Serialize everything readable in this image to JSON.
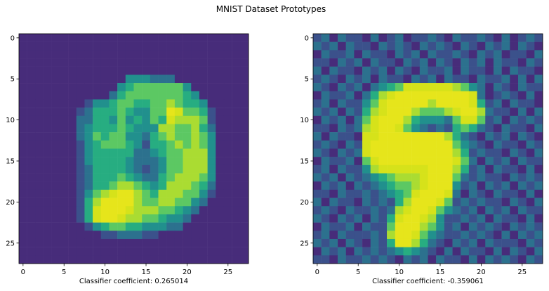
{
  "figure": {
    "suptitle": "MNIST Dataset Prototypes"
  },
  "chart_data": [
    {
      "type": "heatmap",
      "title": "",
      "xlabel": "Classifier coefficient: 0.265014",
      "ylabel": "",
      "colormap": "viridis",
      "grid_size": [
        28,
        28
      ],
      "xlim": [
        -0.5,
        27.5
      ],
      "ylim": [
        27.5,
        -0.5
      ],
      "xticks": [
        0,
        5,
        10,
        15,
        20,
        25
      ],
      "yticks": [
        0,
        5,
        10,
        15,
        20,
        25
      ],
      "xtick_labels": [
        "0",
        "5",
        "10",
        "15",
        "20",
        "25"
      ],
      "ytick_labels": [
        "0",
        "5",
        "10",
        "15",
        "20",
        "25"
      ],
      "grid": false,
      "legend": "none",
      "values": [
        "1111111111111111111111111111",
        "1111111111111111111111111111",
        "1111111111111111111111111111",
        "1111111111111111111111111111",
        "1111111111111111111111111111",
        "1111111111111444333111111111",
        "1111111111114566666641111111",
        "1111111111135666666654111111",
        "1111111124456655667655411111",
        "1111111235556544669866521111",
        "1111111335546454658777621111",
        "1111111345556544477667531111",
        "1111111346566443567667641111",
        "1111111245666542556767641111",
        "1111111245555533456677741111",
        "1111111245555433346677741111",
        "1111111235555432346677741111",
        "1111111235556543356777641111",
        "1111111235567765457776531111",
        "1111111246789976577766421111",
        "1111111257999976677664311111",
        "1111111258999877766543111111",
        "1111111258998776654431111111",
        "1111111124566554443311111111",
        "1111111111223332211111111111",
        "1111111111111111111111111111",
        "1111111111111111111111111111",
        "1111111111111111111111111111"
      ]
    },
    {
      "type": "heatmap",
      "title": "",
      "xlabel": "Classifier coefficient: -0.359061",
      "ylabel": "",
      "colormap": "viridis",
      "grid_size": [
        28,
        28
      ],
      "xlim": [
        -0.5,
        27.5
      ],
      "ylim": [
        27.5,
        -0.5
      ],
      "xticks": [
        0,
        5,
        10,
        15,
        20,
        25
      ],
      "yticks": [
        0,
        5,
        10,
        15,
        20,
        25
      ],
      "xtick_labels": [
        "0",
        "5",
        "10",
        "15",
        "20",
        "25"
      ],
      "ytick_labels": [
        "0",
        "5",
        "10",
        "15",
        "20",
        "25"
      ],
      "grid": false,
      "legend": "none",
      "values": [
        "2313221312312232132232131232",
        "3231322132321323213213231321",
        "1322313221323132232132312213",
        "2213231322132313213231322132",
        "3132213231321322313221313221",
        "2321323132213231322132231313",
        "3213231345688888876431321322",
        "1322313578999999999831232131",
        "2313224689999979999852313221",
        "3231325789997666789973221313",
        "1323136899975444368862313232",
        "2213237899864323256532132213",
        "3132218899999999753213231321",
        "2321328999999999964321322132",
        "3213238999999999975232213213",
        "1322316899999999986313231322",
        "2313224788888899975231322131",
        "3231323456777899963232213232",
        "1323132345667899942313231323",
        "2213223234568999831321322131",
        "3132213232579998623232213213",
        "2321322323789986432313231322",
        "3213231325899874223231322131",
        "1322313226999764231323213232",
        "2313222327998643223232131323",
        "3231321325997532132313222132",
        "1323132323454321313221313213",
        "2213223232132313221313232132"
      ]
    }
  ]
}
